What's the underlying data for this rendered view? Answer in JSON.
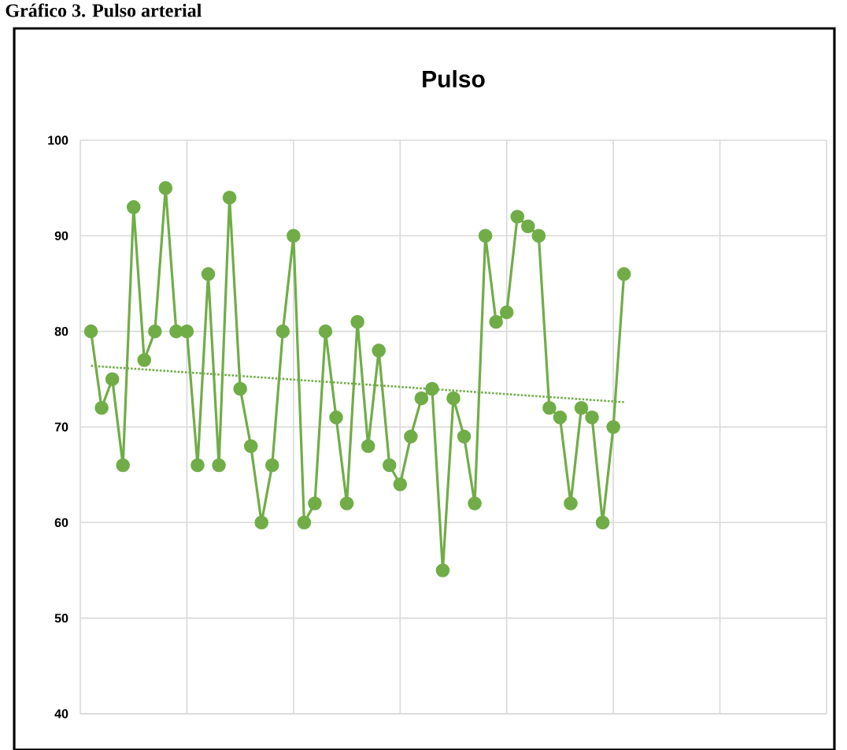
{
  "chart_data": {
    "type": "line",
    "title": "Pulso",
    "annotations": [
      "Gráfico 3. Pulso arterial"
    ],
    "categories": [
      null,
      null,
      null,
      null,
      null,
      null,
      null,
      null,
      null,
      null,
      null,
      null,
      null,
      null,
      null,
      null,
      null,
      null,
      null,
      null,
      null,
      null,
      null,
      null,
      null,
      null,
      null,
      null,
      null,
      null,
      null,
      null,
      null,
      null,
      null,
      null,
      null,
      null,
      null,
      null,
      null,
      null,
      null,
      null,
      null,
      null,
      null,
      null,
      null,
      null,
      null
    ],
    "ylim": [
      40,
      100
    ],
    "yticks": [
      40,
      50,
      60,
      70,
      80,
      90,
      100
    ],
    "grid": true,
    "tick_labels": "y",
    "marker": "circle",
    "series": [
      {
        "color": "#70ad47",
        "values": [
          80,
          72,
          75,
          66,
          93,
          77,
          80,
          95,
          80,
          80,
          66,
          86,
          66,
          94,
          74,
          68,
          60,
          66,
          80,
          90,
          60,
          62,
          80,
          71,
          62,
          81,
          68,
          78,
          66,
          64,
          69,
          73,
          74,
          55,
          73,
          69,
          62,
          90,
          81,
          82,
          92,
          91,
          90,
          72,
          71,
          62,
          72,
          71,
          60,
          70,
          86
        ]
      },
      {
        "type": "line",
        "color": "#70ad47",
        "values": [
          76.4,
          null,
          null,
          null,
          null,
          null,
          null,
          null,
          null,
          null,
          null,
          null,
          null,
          null,
          null,
          null,
          null,
          null,
          null,
          null,
          null,
          null,
          null,
          null,
          null,
          null,
          null,
          null,
          null,
          null,
          null,
          null,
          null,
          null,
          null,
          null,
          null,
          null,
          null,
          null,
          null,
          null,
          null,
          null,
          null,
          null,
          null,
          null,
          null,
          null,
          72.6
        ],
        "line_style": "dotted",
        "marker": "none"
      }
    ]
  }
}
